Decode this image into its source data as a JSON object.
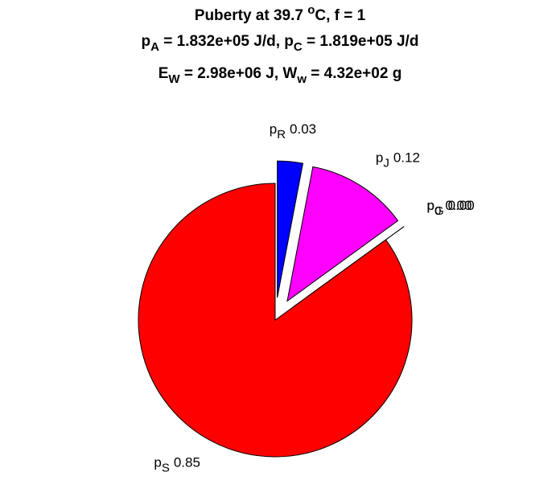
{
  "chart_data": {
    "type": "pie",
    "title": [
      [
        {
          "text": "Puberty at 39.7 "
        },
        {
          "text": "o",
          "shift": "sup"
        },
        {
          "text": "C, f = 1"
        }
      ],
      [
        {
          "text": "p"
        },
        {
          "text": "A",
          "shift": "sub"
        },
        {
          "text": " = 1.832e+05 J/d,  p"
        },
        {
          "text": "C",
          "shift": "sub"
        },
        {
          "text": " = 1.819e+05 J/d"
        }
      ],
      [
        {
          "text": "E"
        },
        {
          "text": "W",
          "shift": "sub"
        },
        {
          "text": " = 2.98e+06 J, W"
        },
        {
          "text": "w",
          "shift": "sub"
        },
        {
          "text": " = 4.32e+02 g"
        }
      ]
    ],
    "categories": [
      [
        {
          "text": "p"
        },
        {
          "text": "R",
          "shift": "sub"
        }
      ],
      [
        {
          "text": "p"
        },
        {
          "text": "J",
          "shift": "sub"
        }
      ],
      [
        {
          "text": "p"
        },
        {
          "text": "G",
          "shift": "sub"
        }
      ],
      [
        {
          "text": "p"
        },
        {
          "text": "0",
          "shift": "sub"
        }
      ],
      [
        {
          "text": "p"
        },
        {
          "text": "S",
          "shift": "sub"
        }
      ]
    ],
    "values": [
      0.03,
      0.12,
      0,
      0,
      0.85
    ],
    "value_labels": [
      "0.03",
      "0.12",
      "0.00",
      "0.00",
      "0.85"
    ],
    "colors": [
      "#0000ff",
      "#ff00ff",
      "#00ff00",
      "#ffff00",
      "#ff0000"
    ],
    "explode": [
      true,
      true,
      true,
      true,
      false
    ]
  }
}
